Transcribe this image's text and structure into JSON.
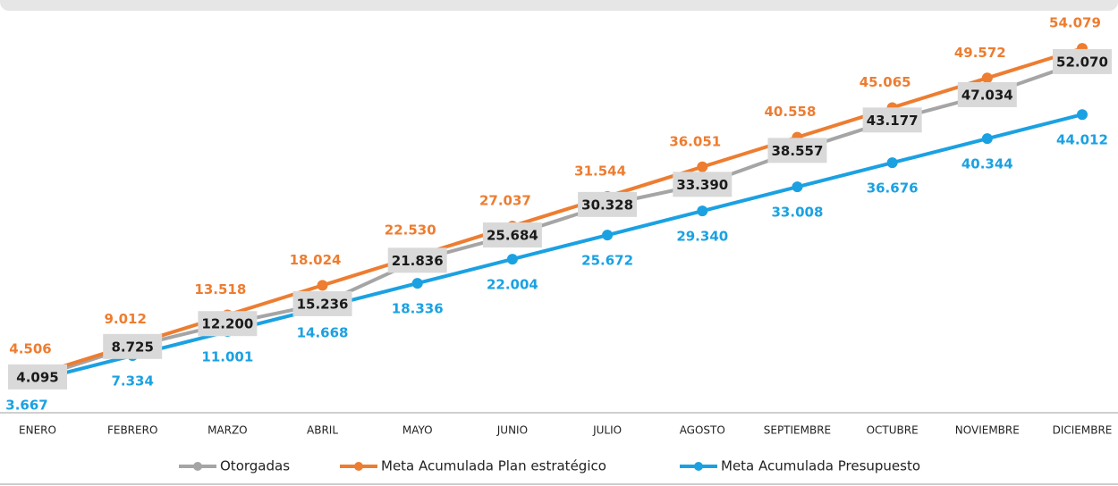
{
  "chart_data": {
    "type": "line",
    "categories": [
      "ENERO",
      "FEBRERO",
      "MARZO",
      "ABRIL",
      "MAYO",
      "JUNIO",
      "JULIO",
      "AGOSTO",
      "SEPTIEMBRE",
      "OCTUBRE",
      "NOVIEMBRE",
      "DICIEMBRE"
    ],
    "series": [
      {
        "name": "Otorgadas",
        "color": "#a5a5a5",
        "values": [
          4095,
          8725,
          12200,
          15236,
          21836,
          25684,
          30328,
          33390,
          38557,
          43177,
          47034,
          52070
        ],
        "value_labels": [
          "4.095",
          "8.725",
          "12.200",
          "15.236",
          "21.836",
          "25.684",
          "30.328",
          "33.390",
          "38.557",
          "43.177",
          "47.034",
          "52.070"
        ]
      },
      {
        "name": "Meta Acumulada Plan estratégico",
        "color": "#ed7d31",
        "values": [
          4506,
          9012,
          13518,
          18024,
          22530,
          27037,
          31544,
          36051,
          40558,
          45065,
          49572,
          54079
        ],
        "value_labels": [
          "4.506",
          "9.012",
          "13.518",
          "18.024",
          "22.530",
          "27.037",
          "31.544",
          "36.051",
          "40.558",
          "45.065",
          "49.572",
          "54.079"
        ]
      },
      {
        "name": "Meta Acumulada Presupuesto",
        "color": "#1ba1e2",
        "values": [
          3667,
          7334,
          11001,
          14668,
          18336,
          22004,
          25672,
          29340,
          33008,
          36676,
          40344,
          44012
        ],
        "value_labels": [
          "3.667",
          "7.334",
          "11.001",
          "14.668",
          "18.336",
          "22.004",
          "25.672",
          "29.340",
          "33.008",
          "36.676",
          "40.344",
          "44.012"
        ]
      }
    ],
    "ylim": [
      0,
      56000
    ],
    "legend": "bottom"
  }
}
